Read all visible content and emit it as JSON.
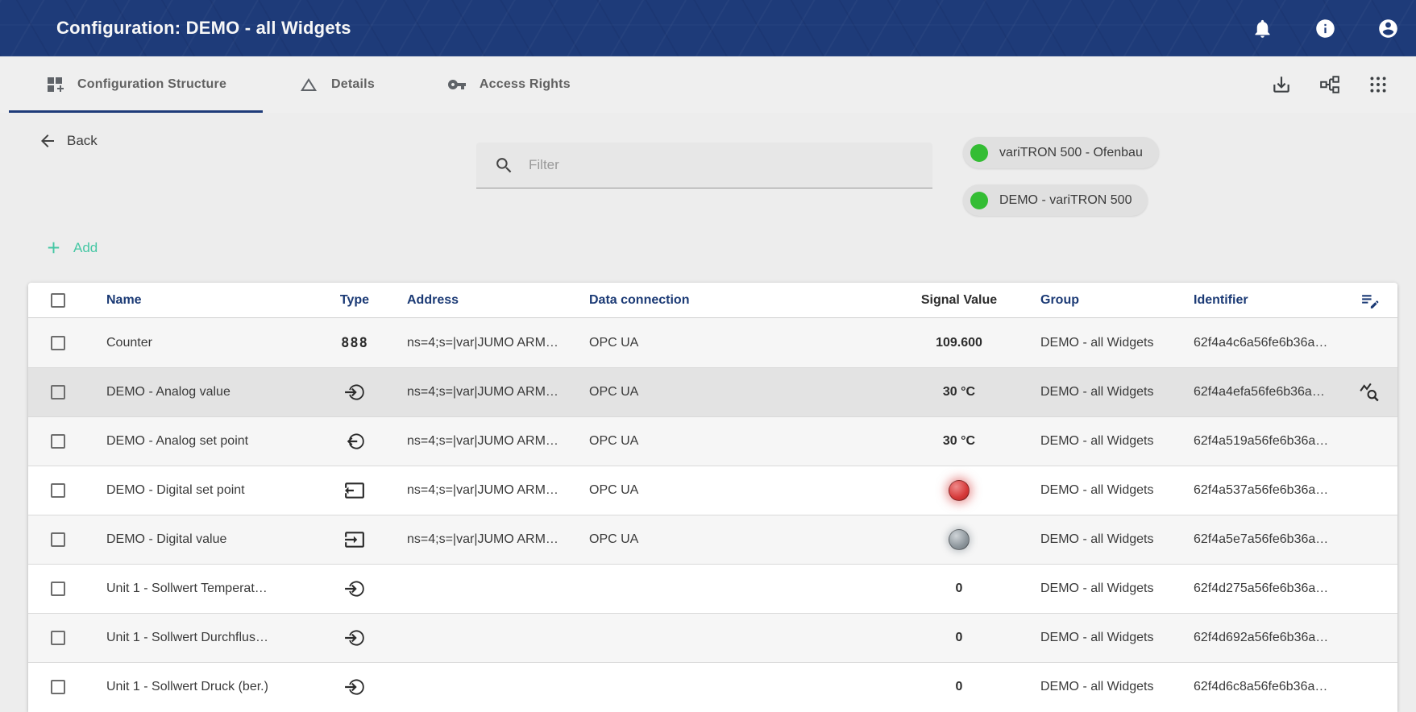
{
  "topbar": {
    "title": "Configuration: DEMO - all Widgets"
  },
  "tabs": [
    {
      "label": "Configuration Structure",
      "active": true
    },
    {
      "label": "Details",
      "active": false
    },
    {
      "label": "Access Rights",
      "active": false
    }
  ],
  "back": {
    "label": "Back"
  },
  "filter": {
    "placeholder": "Filter"
  },
  "device_chips": [
    {
      "label": "variTRON 500 - Ofenbau",
      "status": "online"
    },
    {
      "label": "DEMO - variTRON 500",
      "status": "online"
    }
  ],
  "add_button": {
    "label": "Add"
  },
  "table": {
    "columns": {
      "name": "Name",
      "type": "Type",
      "address": "Address",
      "connection": "Data connection",
      "value": "Signal Value",
      "group": "Group",
      "identifier": "Identifier"
    },
    "rows": [
      {
        "name": "Counter",
        "type_icon": "counter",
        "address": "ns=4;s=|var|JUMO ARM…",
        "connection": "OPC UA",
        "value": "109.600",
        "group": "DEMO - all Widgets",
        "identifier": "62f4a4c6a56fe6b36a…"
      },
      {
        "name": "DEMO - Analog value",
        "type_icon": "analog-input",
        "address": "ns=4;s=|var|JUMO ARM…",
        "connection": "OPC UA",
        "value": "30 °C",
        "group": "DEMO - all Widgets",
        "identifier": "62f4a4efa56fe6b36a…",
        "selected": true,
        "action_icon": "query-stats"
      },
      {
        "name": "DEMO - Analog set point",
        "type_icon": "analog-output",
        "address": "ns=4;s=|var|JUMO ARM…",
        "connection": "OPC UA",
        "value": "30 °C",
        "group": "DEMO - all Widgets",
        "identifier": "62f4a519a56fe6b36a…"
      },
      {
        "name": "DEMO - Digital set point",
        "type_icon": "digital-output",
        "address": "ns=4;s=|var|JUMO ARM…",
        "connection": "OPC UA",
        "led": "red",
        "group": "DEMO - all Widgets",
        "identifier": "62f4a537a56fe6b36a…"
      },
      {
        "name": "DEMO - Digital value",
        "type_icon": "digital-input",
        "address": "ns=4;s=|var|JUMO ARM…",
        "connection": "OPC UA",
        "led": "gray",
        "group": "DEMO - all Widgets",
        "identifier": "62f4a5e7a56fe6b36a…"
      },
      {
        "name": "Unit 1 - Sollwert Temperat…",
        "type_icon": "analog-input",
        "address": "",
        "connection": "",
        "value": "0",
        "group": "DEMO - all Widgets",
        "identifier": "62f4d275a56fe6b36a…"
      },
      {
        "name": "Unit 1 - Sollwert Durchflus…",
        "type_icon": "analog-input",
        "address": "",
        "connection": "",
        "value": "0",
        "group": "DEMO - all Widgets",
        "identifier": "62f4d692a56fe6b36a…"
      },
      {
        "name": "Unit 1 - Sollwert Druck (ber.)",
        "type_icon": "analog-input",
        "address": "",
        "connection": "",
        "value": "0",
        "group": "DEMO - all Widgets",
        "identifier": "62f4d6c8a56fe6b36a…"
      }
    ]
  },
  "colors": {
    "topbar_blue": "#1e3b79",
    "accent_teal": "#45c7a4",
    "chip_green": "#34bd34",
    "header_text": "#1b3a75",
    "led_red": "#d63a3a",
    "led_gray": "#8d969c"
  }
}
